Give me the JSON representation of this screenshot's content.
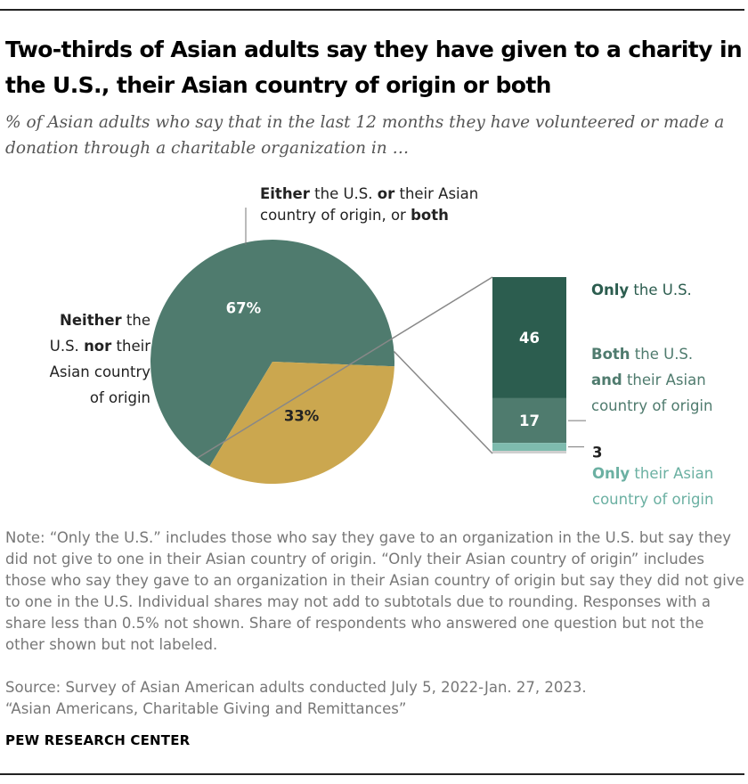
{
  "title": "Two-thirds of Asian adults say they have given to a charity in the U.S., their Asian country of origin or both",
  "subtitle": "% of Asian adults who say that in the last 12 months they have volunteered or made a donation through a charitable organization in …",
  "chart_data": {
    "type": "pie",
    "pie": {
      "slices": [
        {
          "value": 67,
          "label": "67%",
          "color": "#4f7b6e",
          "annotation_lines": [
            [
              {
                "t": "Either",
                "b": true
              },
              {
                "t": " the U.S. ",
                "b": false
              },
              {
                "t": "or",
                "b": true
              },
              {
                "t": " their Asian",
                "b": false
              }
            ],
            [
              {
                "t": "country of origin, or ",
                "b": false
              },
              {
                "t": "both",
                "b": true
              }
            ]
          ]
        },
        {
          "value": 33,
          "label": "33%",
          "color": "#cba74f",
          "annotation_lines": [
            [
              {
                "t": "Neither",
                "b": true
              },
              {
                "t": " the",
                "b": false
              }
            ],
            [
              {
                "t": "U.S. ",
                "b": false
              },
              {
                "t": "nor",
                "b": true
              },
              {
                "t": " their",
                "b": false
              }
            ],
            [
              {
                "t": "Asian country",
                "b": false
              }
            ],
            [
              {
                "t": "of origin",
                "b": false
              }
            ]
          ]
        }
      ]
    },
    "breakdown": {
      "type": "bar",
      "segments": [
        {
          "value": 46,
          "label": "46",
          "color": "#2c5d4f",
          "text_color": "#2c5d4f",
          "annotation_lines": [
            [
              {
                "t": "Only",
                "b": true
              },
              {
                "t": " the U.S.",
                "b": false
              }
            ]
          ]
        },
        {
          "value": 17,
          "label": "17",
          "color": "#4f7b6e",
          "text_color": "#4f7b6e",
          "annotation_lines": [
            [
              {
                "t": "Both",
                "b": true
              },
              {
                "t": " the U.S.",
                "b": false
              }
            ],
            [
              {
                "t": "and",
                "b": true
              },
              {
                "t": " their Asian",
                "b": false
              }
            ],
            [
              {
                "t": "country of origin",
                "b": false
              }
            ]
          ]
        },
        {
          "value": 3,
          "label": "3",
          "color": "#7ebbae",
          "text_color": "#6bb0a2",
          "annotation_lines": [
            [
              {
                "t": "Only",
                "b": true
              },
              {
                "t": " their Asian",
                "b": false
              }
            ],
            [
              {
                "t": "country of origin",
                "b": false
              }
            ]
          ]
        },
        {
          "value": 1,
          "label": "",
          "color": "#cfcfcf",
          "text_color": "#999999",
          "annotation_lines": []
        }
      ]
    }
  },
  "notes": {
    "note": "Note: “Only the U.S.” includes those who say they gave to an organization in the U.S. but say they did not give to one in their Asian country of origin. “Only their Asian country of origin” includes those who say they gave to an organization in their Asian country of origin but say they did not give to one in the U.S. Individual shares may not add to subtotals due to rounding. Responses with a share less than 0.5% not shown. Share of respondents who answered one question but not the other shown but not labeled.",
    "source": "Source: Survey of Asian American adults conducted July 5, 2022-Jan. 27, 2023.",
    "report": "“Asian Americans, Charitable Giving and Remittances”"
  },
  "logo": "PEW RESEARCH CENTER"
}
